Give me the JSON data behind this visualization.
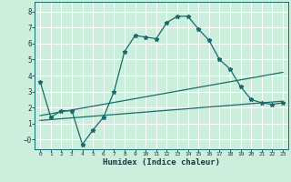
{
  "xlabel": "Humidex (Indice chaleur)",
  "background_color": "#cceedd",
  "grid_color": "#ffffff",
  "line_color": "#1a6b6b",
  "xlim": [
    -0.5,
    23.5
  ],
  "ylim": [
    -0.6,
    8.6
  ],
  "yticks": [
    0,
    1,
    2,
    3,
    4,
    5,
    6,
    7,
    8
  ],
  "ytick_labels": [
    "−0",
    "1",
    "2",
    "3",
    "4",
    "5",
    "6",
    "7",
    "8"
  ],
  "xticks": [
    0,
    1,
    2,
    3,
    4,
    5,
    6,
    7,
    8,
    9,
    10,
    11,
    12,
    13,
    14,
    15,
    16,
    17,
    18,
    19,
    20,
    21,
    22,
    23
  ],
  "curve1_x": [
    0,
    1,
    2,
    3,
    4,
    5,
    6,
    7,
    8,
    9,
    10,
    11,
    12,
    13,
    14,
    15,
    16,
    17,
    18,
    19,
    20,
    21,
    22,
    23
  ],
  "curve1_y": [
    3.6,
    1.4,
    1.8,
    1.8,
    -0.3,
    0.6,
    1.4,
    3.0,
    5.5,
    6.5,
    6.4,
    6.3,
    7.3,
    7.7,
    7.7,
    6.9,
    6.2,
    5.0,
    4.4,
    3.3,
    2.5,
    2.3,
    2.2,
    2.3
  ],
  "curve2_x": [
    0,
    23
  ],
  "curve2_y": [
    1.5,
    4.2
  ],
  "curve3_x": [
    0,
    23
  ],
  "curve3_y": [
    1.2,
    2.4
  ]
}
